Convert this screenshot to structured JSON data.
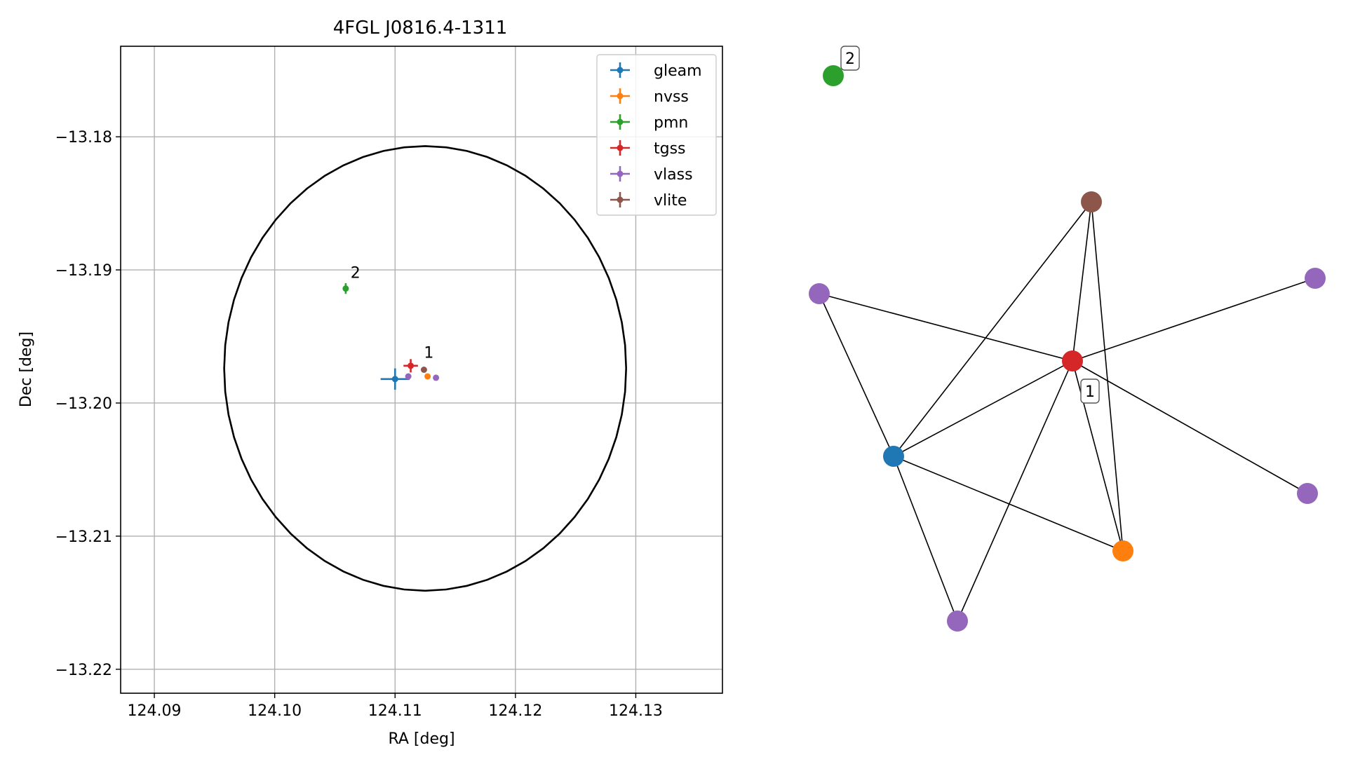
{
  "chart_data": [
    {
      "type": "scatter",
      "title": "4FGL J0816.4-1311",
      "xlabel": "RA [deg]",
      "ylabel": "Dec [deg]",
      "xlim": [
        124.0872,
        124.1372
      ],
      "ylim": [
        -13.2218,
        -13.1732
      ],
      "xticks": [
        124.09,
        124.1,
        124.11,
        124.12,
        124.13
      ],
      "xtick_labels": [
        "124.09",
        "124.10",
        "124.11",
        "124.12",
        "124.13"
      ],
      "yticks": [
        -13.18,
        -13.19,
        -13.2,
        -13.21,
        -13.22
      ],
      "ytick_labels": [
        "−13.18",
        "−13.19",
        "−13.20",
        "−13.21",
        "−13.22"
      ],
      "grid": true,
      "legend_position": "top-right",
      "circle": {
        "center": [
          124.1125,
          -13.1974
        ],
        "radius": 0.0167,
        "color": "#000000"
      },
      "series": [
        {
          "name": "gleam",
          "color": "#1f77b4",
          "points": [
            {
              "x": 124.11,
              "y": -13.1982,
              "xerr": 0.0012,
              "yerr": 0.0008
            }
          ]
        },
        {
          "name": "nvss",
          "color": "#ff7f0e",
          "points": [
            {
              "x": 124.1127,
              "y": -13.198,
              "xerr": 0.0,
              "yerr": 0.0
            }
          ]
        },
        {
          "name": "pmn",
          "color": "#2ca02c",
          "points": [
            {
              "x": 124.1059,
              "y": -13.1914,
              "xerr": 0.0001,
              "yerr": 0.0004
            }
          ]
        },
        {
          "name": "tgss",
          "color": "#d62728",
          "points": [
            {
              "x": 124.1113,
              "y": -13.1972,
              "xerr": 0.0006,
              "yerr": 0.0005
            }
          ]
        },
        {
          "name": "vlass",
          "color": "#9467bd",
          "points": [
            {
              "x": 124.1111,
              "y": -13.198,
              "xerr": 0.0,
              "yerr": 0.0
            },
            {
              "x": 124.1134,
              "y": -13.1981,
              "xerr": 0.0,
              "yerr": 0.0
            }
          ]
        },
        {
          "name": "vlite",
          "color": "#8c564b",
          "points": [
            {
              "x": 124.1124,
              "y": -13.1975,
              "xerr": 0.0,
              "yerr": 0.0
            }
          ]
        }
      ],
      "annotations": [
        {
          "text": "2",
          "x": 124.1063,
          "y": -13.1906
        },
        {
          "text": "1",
          "x": 124.1124,
          "y": -13.1966
        }
      ]
    },
    {
      "type": "network",
      "nodes": [
        {
          "id": "pmn",
          "color": "#2ca02c"
        },
        {
          "id": "vlite",
          "color": "#8c564b"
        },
        {
          "id": "vlass_a",
          "color": "#9467bd"
        },
        {
          "id": "vlass_b",
          "color": "#9467bd"
        },
        {
          "id": "tgss",
          "color": "#d62728"
        },
        {
          "id": "gleam",
          "color": "#1f77b4"
        },
        {
          "id": "vlass_c",
          "color": "#9467bd"
        },
        {
          "id": "nvss",
          "color": "#ff7f0e"
        },
        {
          "id": "vlass_d",
          "color": "#9467bd"
        }
      ],
      "edges": [
        [
          "vlass_a",
          "tgss"
        ],
        [
          "vlass_a",
          "gleam"
        ],
        [
          "vlite",
          "gleam"
        ],
        [
          "vlite",
          "tgss"
        ],
        [
          "vlite",
          "nvss"
        ],
        [
          "tgss",
          "vlass_b"
        ],
        [
          "tgss",
          "gleam"
        ],
        [
          "tgss",
          "vlass_c"
        ],
        [
          "tgss",
          "nvss"
        ],
        [
          "tgss",
          "vlass_d"
        ],
        [
          "gleam",
          "nvss"
        ],
        [
          "gleam",
          "vlass_d"
        ]
      ],
      "labels": [
        {
          "text": "2",
          "node": "pmn"
        },
        {
          "text": "1",
          "node": "tgss"
        }
      ]
    }
  ]
}
